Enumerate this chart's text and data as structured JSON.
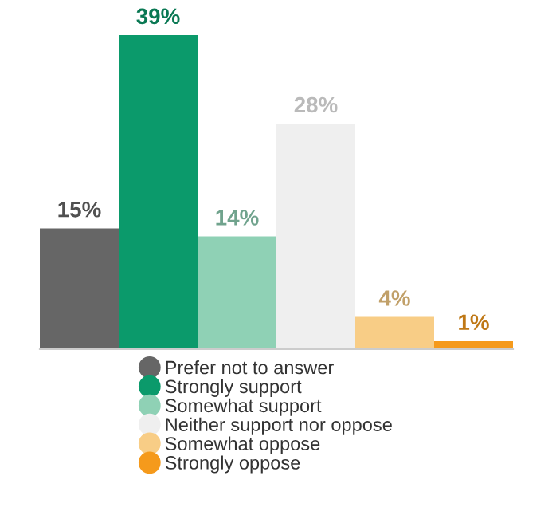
{
  "chart_data": {
    "type": "bar",
    "categories": [
      null
    ],
    "series": [
      {
        "name": "Prefer not to answer",
        "color": "#666666",
        "values": [
          15
        ],
        "value_labels": [
          "15%"
        ]
      },
      {
        "name": "Strongly support",
        "color": "#0b9a6b",
        "values": [
          39
        ],
        "value_labels": [
          "39%"
        ]
      },
      {
        "name": "Somewhat support",
        "color": "#8fd1b5",
        "values": [
          14
        ],
        "value_labels": [
          "14%"
        ]
      },
      {
        "name": "Neither support nor oppose",
        "color": "#efefef",
        "values": [
          28
        ],
        "value_labels": [
          "28%"
        ]
      },
      {
        "name": "Somewhat oppose",
        "color": "#f8cd86",
        "values": [
          4
        ],
        "value_labels": [
          "4%"
        ]
      },
      {
        "name": "Strongly oppose",
        "color": "#f59a1c",
        "values": [
          1
        ],
        "value_labels": [
          "1%"
        ]
      }
    ],
    "legend": "bottom",
    "grid": false
  }
}
